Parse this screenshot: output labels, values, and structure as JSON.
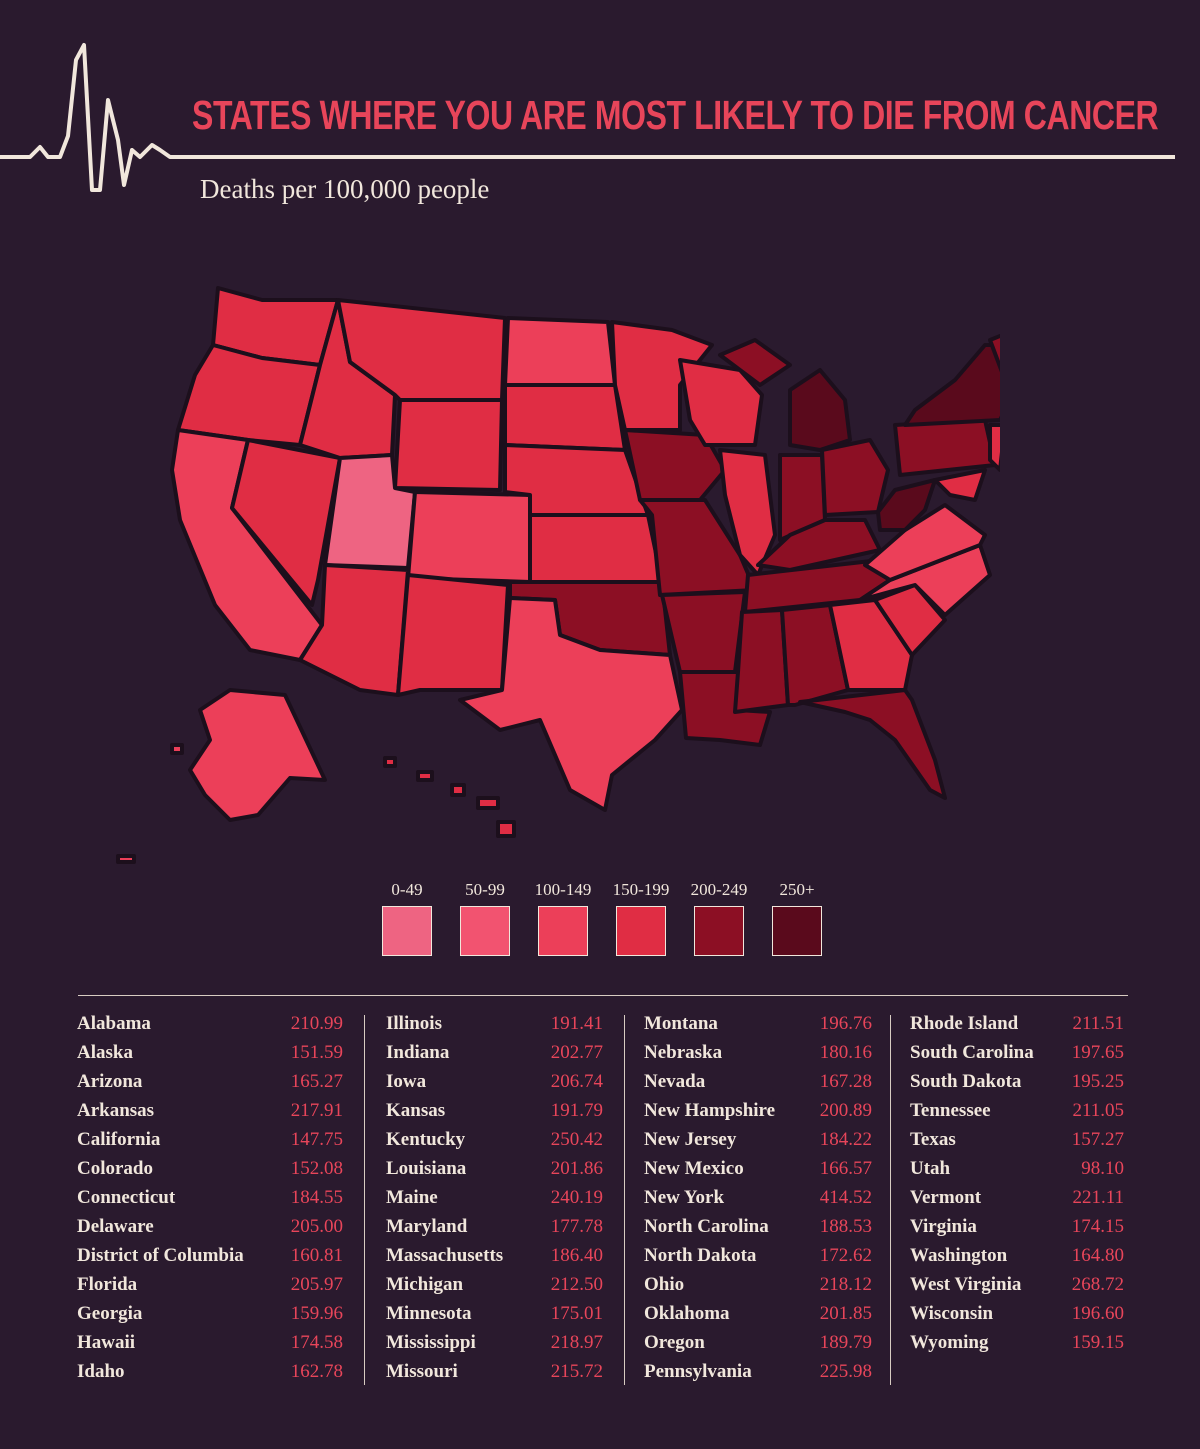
{
  "title": "STATES WHERE YOU ARE MOST LIKELY TO DIE FROM CANCER",
  "subtitle": "Deaths per 100,000 people",
  "colors": {
    "background": "#2a1a2e",
    "accent": "#e8455a",
    "text": "#f1e7dc",
    "bin_0_49": "#ee6482",
    "bin_50_99": "#f25370",
    "bin_100_149": "#ec3f59",
    "bin_150_199": "#e02d44",
    "bin_200_249": "#8c0f24",
    "bin_250_plus": "#5a0a1c"
  },
  "legend": [
    {
      "label": "0-49",
      "color": "#ee6482"
    },
    {
      "label": "50-99",
      "color": "#f25370"
    },
    {
      "label": "100-149",
      "color": "#ec3f59"
    },
    {
      "label": "150-199",
      "color": "#e02d44"
    },
    {
      "label": "200-249",
      "color": "#8c0f24"
    },
    {
      "label": "250+",
      "color": "#5a0a1c"
    }
  ],
  "table": [
    [
      {
        "state": "Alabama",
        "value": "210.99"
      },
      {
        "state": "Alaska",
        "value": "151.59"
      },
      {
        "state": "Arizona",
        "value": "165.27"
      },
      {
        "state": "Arkansas",
        "value": "217.91"
      },
      {
        "state": "California",
        "value": "147.75"
      },
      {
        "state": "Colorado",
        "value": "152.08"
      },
      {
        "state": "Connecticut",
        "value": "184.55"
      },
      {
        "state": "Delaware",
        "value": "205.00"
      },
      {
        "state": "District of Columbia",
        "value": "160.81"
      },
      {
        "state": "Florida",
        "value": "205.97"
      },
      {
        "state": "Georgia",
        "value": "159.96"
      },
      {
        "state": "Hawaii",
        "value": "174.58"
      },
      {
        "state": "Idaho",
        "value": "162.78"
      }
    ],
    [
      {
        "state": "Illinois",
        "value": "191.41"
      },
      {
        "state": "Indiana",
        "value": "202.77"
      },
      {
        "state": "Iowa",
        "value": "206.74"
      },
      {
        "state": "Kansas",
        "value": "191.79"
      },
      {
        "state": "Kentucky",
        "value": "250.42"
      },
      {
        "state": "Louisiana",
        "value": "201.86"
      },
      {
        "state": "Maine",
        "value": "240.19"
      },
      {
        "state": "Maryland",
        "value": "177.78"
      },
      {
        "state": "Massachusetts",
        "value": "186.40"
      },
      {
        "state": "Michigan",
        "value": "212.50"
      },
      {
        "state": "Minnesota",
        "value": "175.01"
      },
      {
        "state": "Mississippi",
        "value": "218.97"
      },
      {
        "state": "Missouri",
        "value": "215.72"
      }
    ],
    [
      {
        "state": "Montana",
        "value": "196.76"
      },
      {
        "state": "Nebraska",
        "value": "180.16"
      },
      {
        "state": "Nevada",
        "value": "167.28"
      },
      {
        "state": "New Hampshire",
        "value": "200.89"
      },
      {
        "state": "New Jersey",
        "value": "184.22"
      },
      {
        "state": "New Mexico",
        "value": "166.57"
      },
      {
        "state": "New York",
        "value": "414.52"
      },
      {
        "state": "North Carolina",
        "value": "188.53"
      },
      {
        "state": "North Dakota",
        "value": "172.62"
      },
      {
        "state": "Ohio",
        "value": "218.12"
      },
      {
        "state": "Oklahoma",
        "value": "201.85"
      },
      {
        "state": "Oregon",
        "value": "189.79"
      },
      {
        "state": "Pennsylvania",
        "value": "225.98"
      }
    ],
    [
      {
        "state": "Rhode Island",
        "value": "211.51"
      },
      {
        "state": "South Carolina",
        "value": "197.65"
      },
      {
        "state": "South Dakota",
        "value": "195.25"
      },
      {
        "state": "Tennessee",
        "value": "211.05"
      },
      {
        "state": "Texas",
        "value": "157.27"
      },
      {
        "state": "Utah",
        "value": "98.10"
      },
      {
        "state": "Vermont",
        "value": "221.11"
      },
      {
        "state": "Virginia",
        "value": "174.15"
      },
      {
        "state": "Washington",
        "value": "164.80"
      },
      {
        "state": "West Virginia",
        "value": "268.72"
      },
      {
        "state": "Wisconsin",
        "value": "196.60"
      },
      {
        "state": "Wyoming",
        "value": "159.15"
      }
    ]
  ]
}
